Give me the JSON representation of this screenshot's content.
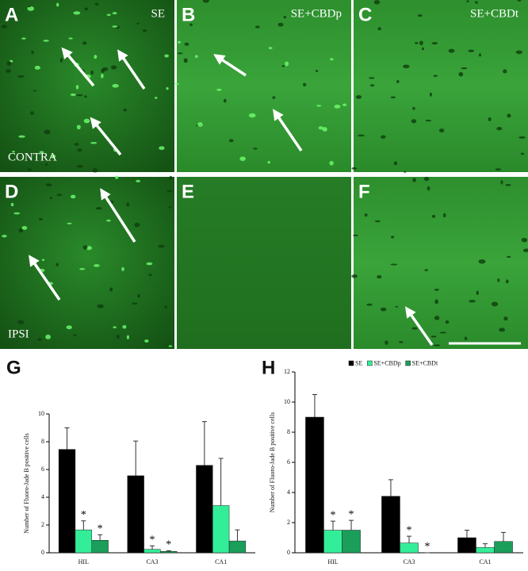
{
  "panels": [
    {
      "label": "A",
      "caption": "SE",
      "side": "CONTRA"
    },
    {
      "label": "B",
      "caption": "SE+CBDp"
    },
    {
      "label": "C",
      "caption": "SE+CBDt"
    },
    {
      "label": "D",
      "side": "IPSI"
    },
    {
      "label": "E"
    },
    {
      "label": "F"
    }
  ],
  "chart_data": [
    {
      "type": "bar",
      "label": "G",
      "ylabel": "Number of Fluoro-Jade B positive cells",
      "categories": [
        "HIL",
        "CA3",
        "CA1"
      ],
      "ylim": [
        0,
        10
      ],
      "yticks": [
        0,
        2,
        4,
        6,
        8,
        10
      ],
      "series": [
        {
          "name": "SE",
          "color": "#000000",
          "values": [
            7.45,
            5.55,
            6.3
          ],
          "errors": [
            1.55,
            2.5,
            3.15
          ]
        },
        {
          "name": "SE+CBDp",
          "color": "#33ee99",
          "values": [
            1.65,
            0.25,
            3.4
          ],
          "errors": [
            0.65,
            0.25,
            3.4
          ]
        },
        {
          "name": "SE+CBDt",
          "color": "#1a9e5a",
          "values": [
            0.9,
            0.1,
            0.85
          ],
          "errors": [
            0.4,
            0.05,
            0.8
          ]
        }
      ],
      "annotations": [
        {
          "text": "*",
          "category": 0,
          "series": 1
        },
        {
          "text": "*",
          "category": 0,
          "series": 2
        },
        {
          "text": "*",
          "category": 1,
          "series": 1
        },
        {
          "text": "*",
          "category": 1,
          "series": 2
        }
      ]
    },
    {
      "type": "bar",
      "label": "H",
      "ylabel": "Number of Fluoro-Jade B positive cells",
      "categories": [
        "HIL",
        "CA3",
        "CA1"
      ],
      "ylim": [
        0,
        12
      ],
      "yticks": [
        0,
        2,
        4,
        6,
        8,
        10,
        12
      ],
      "legend": "top",
      "series": [
        {
          "name": "SE",
          "color": "#000000",
          "values": [
            9.0,
            3.75,
            1.0
          ],
          "errors": [
            1.5,
            1.1,
            0.5
          ]
        },
        {
          "name": "SE+CBDp",
          "color": "#33ee99",
          "values": [
            1.5,
            0.65,
            0.35
          ],
          "errors": [
            0.6,
            0.45,
            0.25
          ]
        },
        {
          "name": "SE+CBDt",
          "color": "#1a9e5a",
          "values": [
            1.5,
            0,
            0.75
          ],
          "errors": [
            0.65,
            0,
            0.6
          ]
        }
      ],
      "annotations": [
        {
          "text": "*",
          "category": 0,
          "series": 1
        },
        {
          "text": "*",
          "category": 0,
          "series": 2
        },
        {
          "text": "*",
          "category": 1,
          "series": 1
        },
        {
          "text": "*",
          "category": 1,
          "series": 2
        }
      ]
    }
  ]
}
